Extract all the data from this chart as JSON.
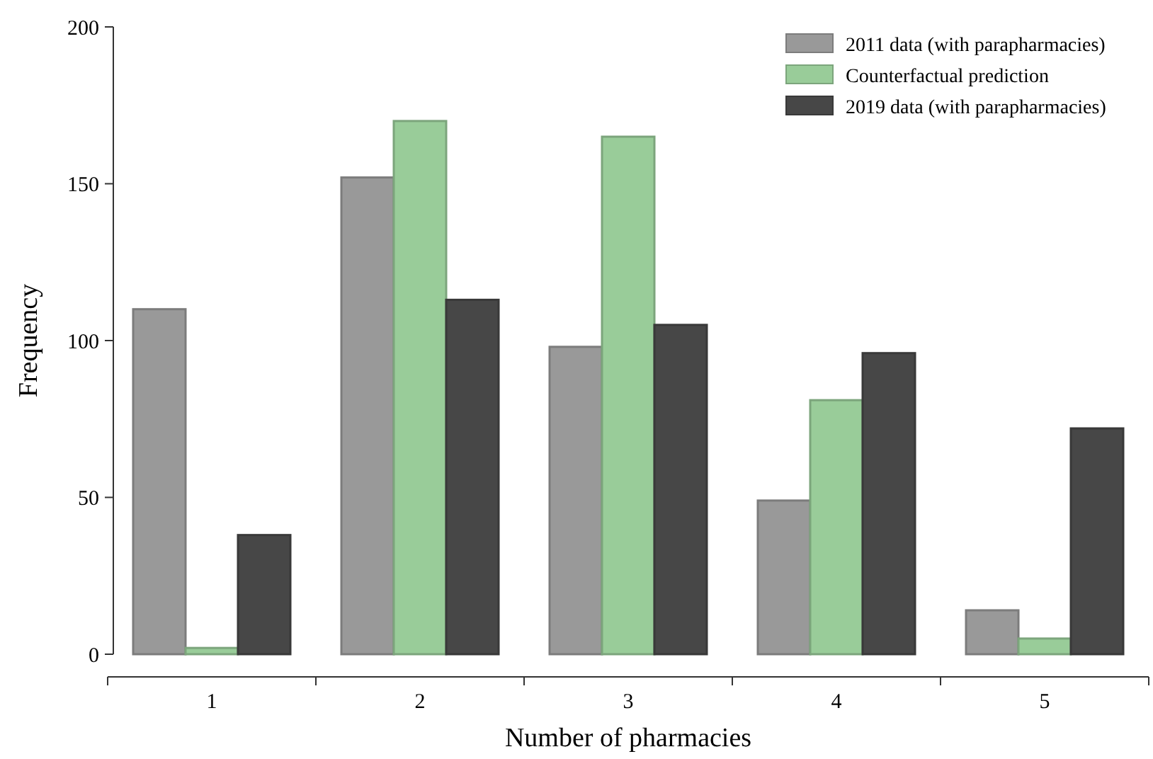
{
  "chart_data": {
    "type": "bar",
    "xlabel": "Number of pharmacies",
    "ylabel": "Frequency",
    "categories": [
      "1",
      "2",
      "3",
      "4",
      "5"
    ],
    "series": [
      {
        "name": "2011 data (with parapharmacies)",
        "color": "#999999",
        "values": [
          110,
          152,
          98,
          49,
          14
        ]
      },
      {
        "name": "Counterfactual prediction",
        "color": "#99cc99",
        "values": [
          2,
          170,
          165,
          81,
          5
        ]
      },
      {
        "name": "2019 data (with parapharmacies)",
        "color": "#474747",
        "values": [
          38,
          113,
          105,
          96,
          72
        ]
      }
    ],
    "ylim": [
      0,
      200
    ],
    "yticks": [
      0,
      50,
      100,
      150,
      200
    ],
    "grid": false,
    "legend": "top right"
  }
}
